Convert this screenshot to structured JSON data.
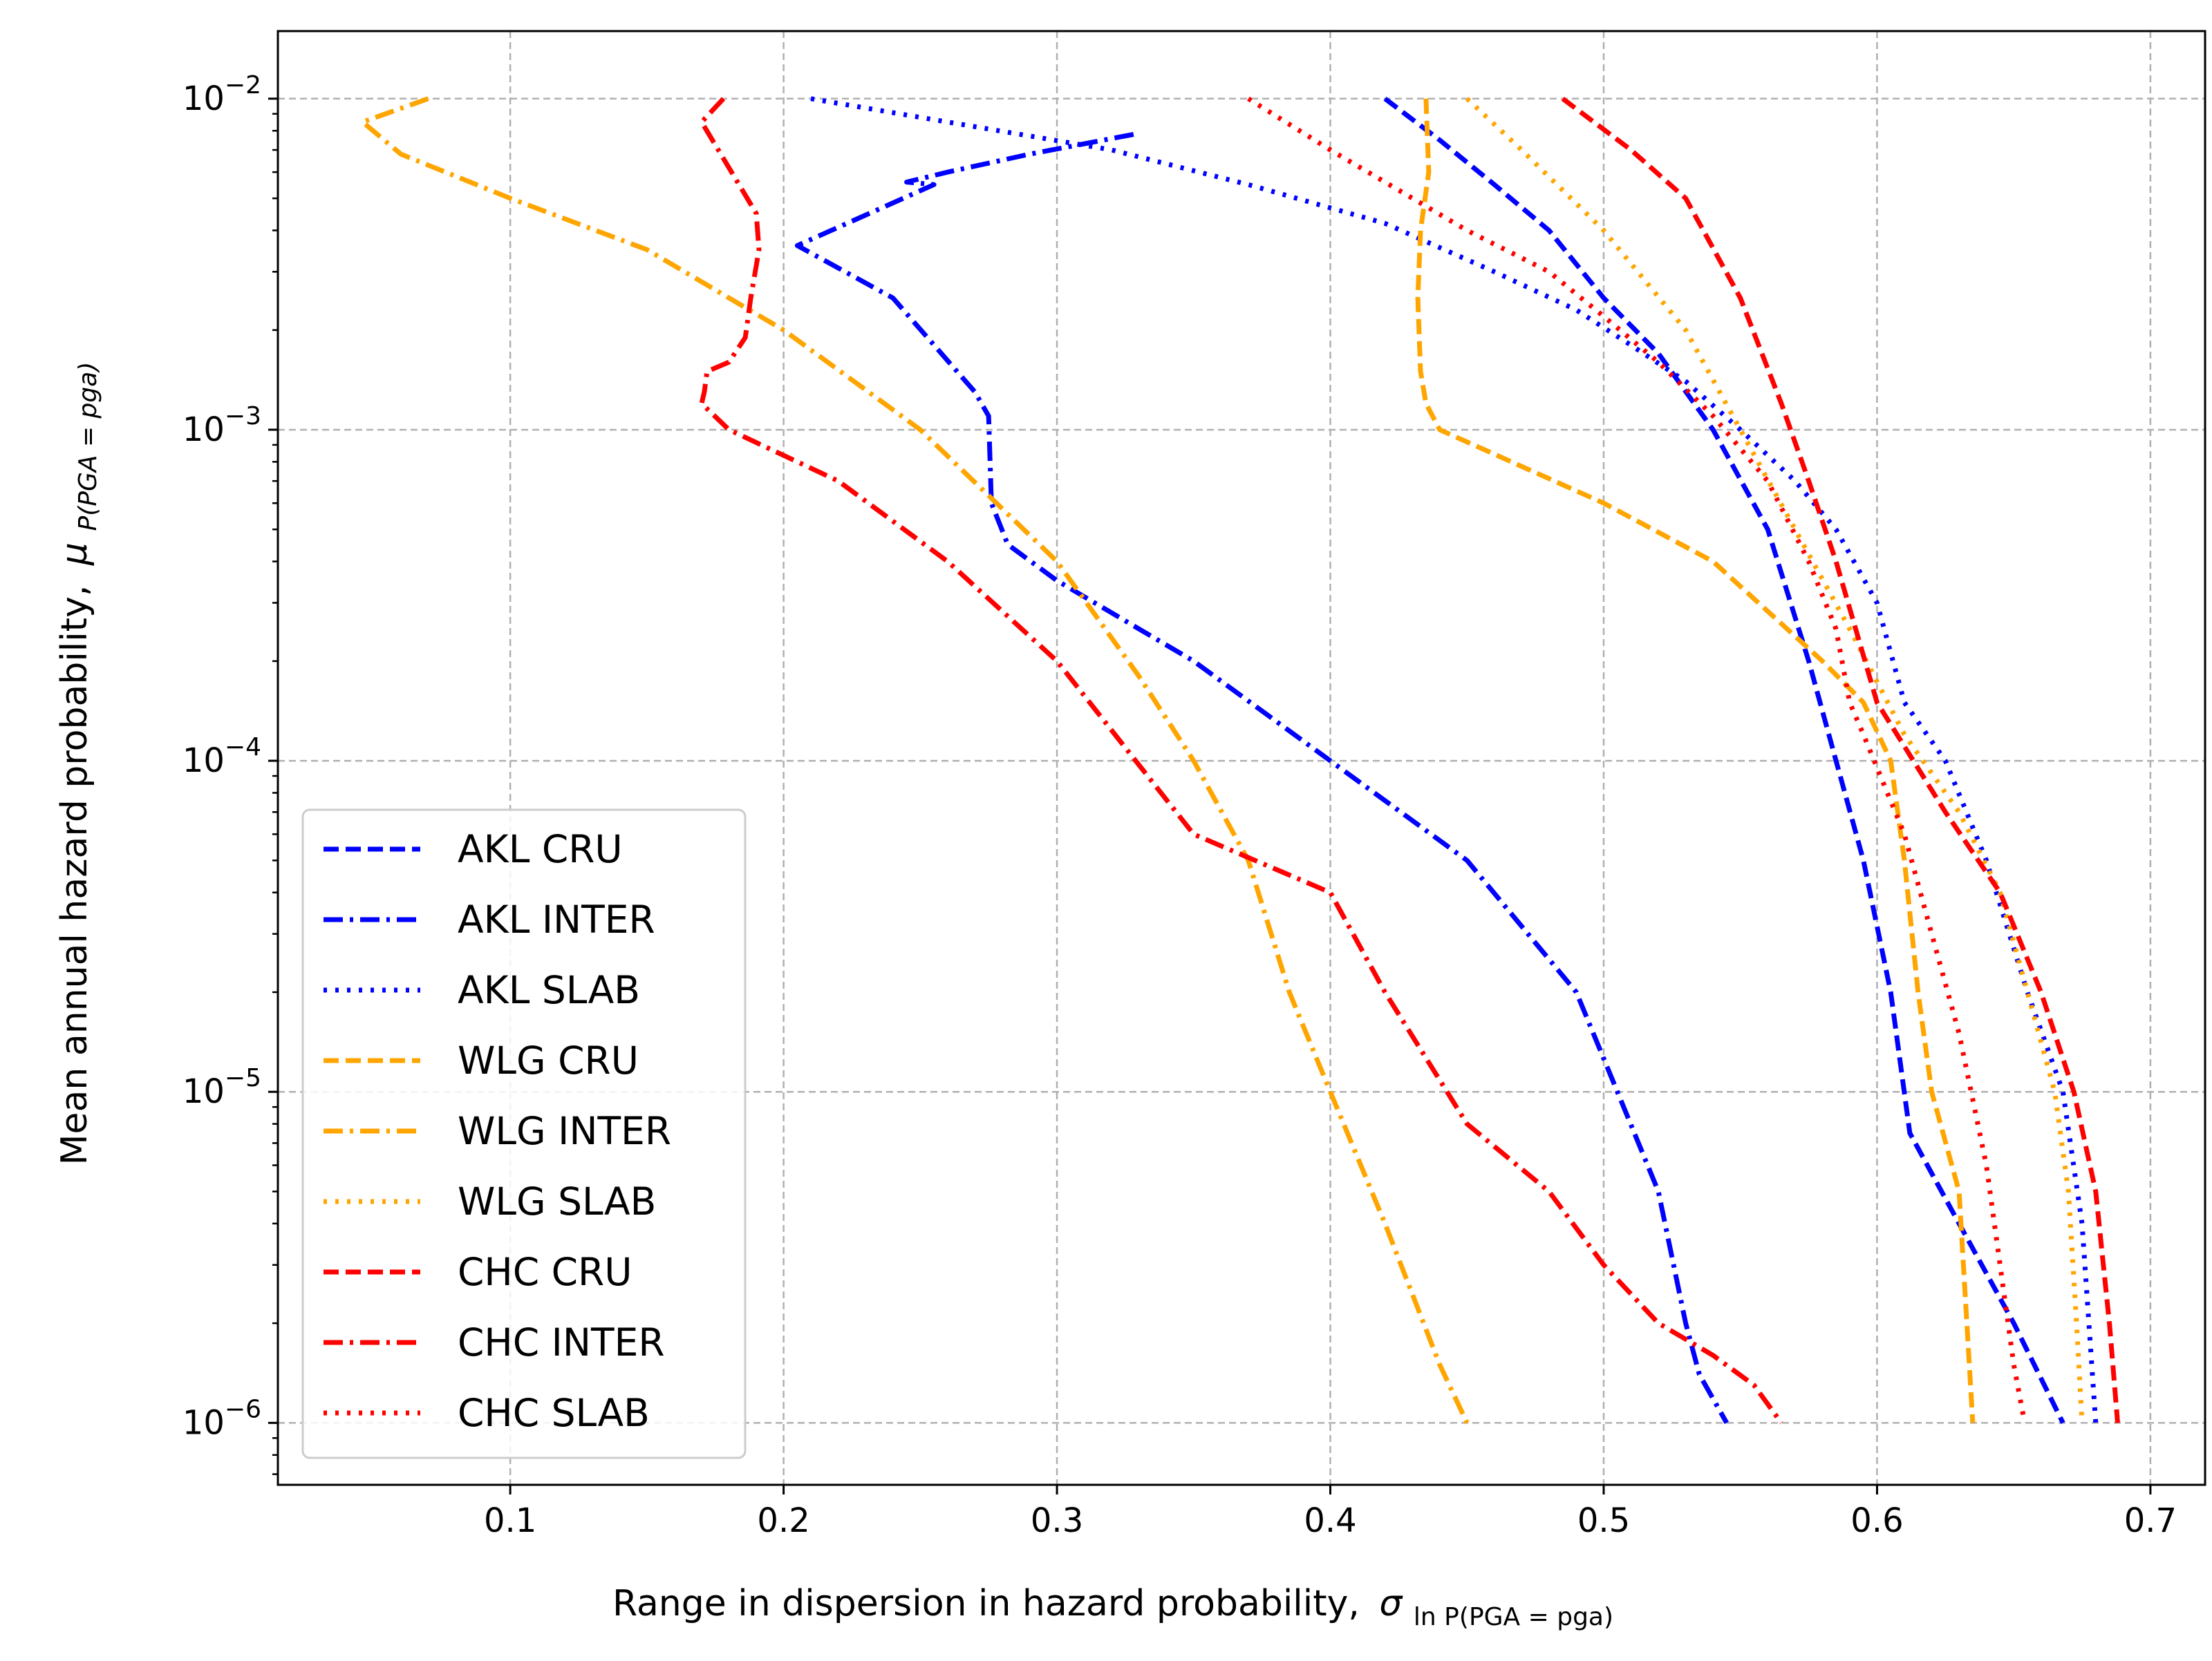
{
  "chart_data": {
    "type": "line",
    "xlabel": "Range in dispersion in hazard probability,",
    "xlabel_symbol": "σ",
    "xlabel_subscript": "ln P(PGA = pga)",
    "ylabel": "Mean annual hazard probability,",
    "ylabel_symbol": "μ",
    "ylabel_subscript": "P(PGA = pga)",
    "xlim": [
      0.015,
      0.72
    ],
    "ylim": [
      6.5e-07,
      0.016
    ],
    "yscale": "log",
    "grid": true,
    "legend_position": "bottom-left",
    "x_ticks": [
      {
        "value": 0.1,
        "label": "0.1"
      },
      {
        "value": 0.2,
        "label": "0.2"
      },
      {
        "value": 0.3,
        "label": "0.3"
      },
      {
        "value": 0.4,
        "label": "0.4"
      },
      {
        "value": 0.5,
        "label": "0.5"
      },
      {
        "value": 0.6,
        "label": "0.6"
      },
      {
        "value": 0.7,
        "label": "0.7"
      }
    ],
    "y_ticks": [
      {
        "value": 0.01,
        "base": "10",
        "exp": "−2"
      },
      {
        "value": 0.001,
        "base": "10",
        "exp": "−3"
      },
      {
        "value": 0.0001,
        "base": "10",
        "exp": "−4"
      },
      {
        "value": 1e-05,
        "base": "10",
        "exp": "−5"
      },
      {
        "value": 1e-06,
        "base": "10",
        "exp": "−6"
      }
    ],
    "series": [
      {
        "name": "AKL CRU",
        "color": "#0000ff",
        "dash": "dashed",
        "x": [
          0.42,
          0.44,
          0.46,
          0.48,
          0.5,
          0.52,
          0.54,
          0.56,
          0.575,
          0.585,
          0.595,
          0.605,
          0.612,
          0.63,
          0.65,
          0.668
        ],
        "y": [
          0.01,
          0.0075,
          0.0055,
          0.004,
          0.0025,
          0.0017,
          0.001,
          0.0005,
          0.0002,
          0.0001,
          5e-05,
          2e-05,
          7.5e-06,
          4e-06,
          2e-06,
          1e-06
        ]
      },
      {
        "name": "AKL INTER",
        "color": "#0000ff",
        "dash": "dashdot",
        "x": [
          0.328,
          0.29,
          0.26,
          0.245,
          0.255,
          0.205,
          0.24,
          0.27,
          0.275,
          0.276,
          0.282,
          0.3,
          0.35,
          0.4,
          0.45,
          0.49,
          0.505,
          0.52,
          0.53,
          0.535,
          0.545
        ],
        "y": [
          0.0078,
          0.0068,
          0.006,
          0.0056,
          0.0055,
          0.0036,
          0.0025,
          0.0013,
          0.0011,
          0.0006,
          0.00045,
          0.00035,
          0.0002,
          0.0001,
          5e-05,
          2e-05,
          1e-05,
          5e-06,
          2e-06,
          1.4e-06,
          1e-06
        ]
      },
      {
        "name": "AKL SLAB",
        "color": "#0000ff",
        "dash": "dotted",
        "x": [
          0.21,
          0.26,
          0.32,
          0.37,
          0.42,
          0.46,
          0.49,
          0.51,
          0.53,
          0.55,
          0.57,
          0.585,
          0.6,
          0.61,
          0.625,
          0.64,
          0.655,
          0.668,
          0.675,
          0.68
        ],
        "y": [
          0.01,
          0.0085,
          0.007,
          0.0055,
          0.0042,
          0.003,
          0.0023,
          0.0018,
          0.0014,
          0.001,
          0.0007,
          0.0005,
          0.0003,
          0.00015,
          0.0001,
          5e-05,
          2e-05,
          1e-05,
          4e-06,
          1e-06
        ]
      },
      {
        "name": "WLG CRU",
        "color": "#ffa500",
        "dash": "dashed",
        "x": [
          0.435,
          0.436,
          0.433,
          0.432,
          0.433,
          0.435,
          0.44,
          0.5,
          0.54,
          0.58,
          0.595,
          0.605,
          0.61,
          0.615,
          0.62,
          0.63,
          0.635
        ],
        "y": [
          0.01,
          0.006,
          0.004,
          0.0025,
          0.0015,
          0.0012,
          0.001,
          0.0006,
          0.0004,
          0.0002,
          0.00015,
          0.0001,
          5e-05,
          2e-05,
          1e-05,
          5e-06,
          1e-06
        ]
      },
      {
        "name": "WLG INTER",
        "color": "#ffa500",
        "dash": "dashdot",
        "x": [
          0.07,
          0.046,
          0.06,
          0.1,
          0.15,
          0.2,
          0.25,
          0.3,
          0.33,
          0.35,
          0.37,
          0.385,
          0.4,
          0.42,
          0.44,
          0.45
        ],
        "y": [
          0.01,
          0.0085,
          0.0068,
          0.005,
          0.0035,
          0.002,
          0.001,
          0.0004,
          0.00018,
          0.0001,
          5e-05,
          2e-05,
          1e-05,
          4e-06,
          1.5e-06,
          1e-06
        ]
      },
      {
        "name": "WLG SLAB",
        "color": "#ffa500",
        "dash": "dotted",
        "x": [
          0.45,
          0.47,
          0.5,
          0.53,
          0.55,
          0.57,
          0.59,
          0.61,
          0.63,
          0.645,
          0.655,
          0.665,
          0.67,
          0.673,
          0.675
        ],
        "y": [
          0.01,
          0.007,
          0.004,
          0.002,
          0.001,
          0.0005,
          0.00025,
          0.00012,
          7e-05,
          4e-05,
          2e-05,
          1e-05,
          5e-06,
          2e-06,
          1e-06
        ]
      },
      {
        "name": "CHC CRU",
        "color": "#ff0000",
        "dash": "dashed",
        "x": [
          0.485,
          0.51,
          0.53,
          0.55,
          0.565,
          0.575,
          0.585,
          0.6,
          0.625,
          0.645,
          0.66,
          0.672,
          0.68,
          0.685,
          0.688
        ],
        "y": [
          0.01,
          0.007,
          0.005,
          0.0025,
          0.0012,
          0.0007,
          0.0004,
          0.00015,
          7e-05,
          4e-05,
          2e-05,
          1e-05,
          5e-06,
          2e-06,
          1e-06
        ]
      },
      {
        "name": "CHC INTER",
        "color": "#ff0000",
        "dash": "dashdot",
        "x": [
          0.178,
          0.17,
          0.19,
          0.191,
          0.188,
          0.186,
          0.18,
          0.172,
          0.171,
          0.17,
          0.18,
          0.22,
          0.26,
          0.3,
          0.35,
          0.4,
          0.42,
          0.45,
          0.48,
          0.5,
          0.52,
          0.54,
          0.555,
          0.565
        ],
        "y": [
          0.01,
          0.0085,
          0.0045,
          0.0035,
          0.0025,
          0.0019,
          0.0016,
          0.0015,
          0.0013,
          0.0012,
          0.001,
          0.0007,
          0.0004,
          0.0002,
          6e-05,
          4e-05,
          2e-05,
          8e-06,
          5e-06,
          3e-06,
          2e-06,
          1.6e-06,
          1.3e-06,
          1e-06
        ]
      },
      {
        "name": "CHC SLAB",
        "color": "#ff0000",
        "dash": "dotted",
        "x": [
          0.37,
          0.4,
          0.45,
          0.48,
          0.5,
          0.52,
          0.54,
          0.56,
          0.575,
          0.585,
          0.59,
          0.595,
          0.61,
          0.62,
          0.63,
          0.64,
          0.645,
          0.65,
          0.654
        ],
        "y": [
          0.01,
          0.007,
          0.004,
          0.003,
          0.0022,
          0.0016,
          0.0011,
          0.0007,
          0.0004,
          0.00025,
          0.00015,
          0.00012,
          6e-05,
          3e-05,
          1.5e-05,
          6e-06,
          3e-06,
          1.5e-06,
          1e-06
        ]
      }
    ]
  }
}
